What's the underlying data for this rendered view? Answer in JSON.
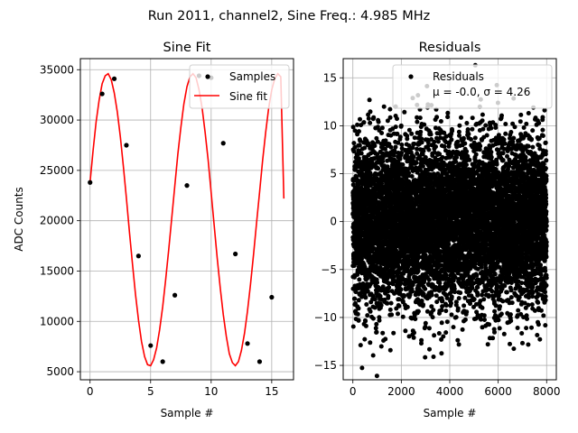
{
  "figure": {
    "suptitle": "Run 2011, channel2, Sine Freq.: 4.985 MHz"
  },
  "colors": {
    "samples": "#000000",
    "fit": "#ff0000",
    "grid": "#b0b0b0",
    "legend_border": "#d0d0d0"
  },
  "chart_data": [
    {
      "type": "scatter",
      "title": "Sine Fit",
      "xlabel": "Sample #",
      "ylabel": "ADC Counts",
      "xlim": [
        -0.8,
        16.8
      ],
      "ylim": [
        4200,
        36100
      ],
      "xticks": [
        0,
        5,
        10,
        15
      ],
      "xtick_labels": [
        "0",
        "5",
        "10",
        "15"
      ],
      "yticks": [
        5000,
        10000,
        15000,
        20000,
        25000,
        30000,
        35000
      ],
      "ytick_labels": [
        "5000",
        "10000",
        "15000",
        "20000",
        "25000",
        "30000",
        "35000"
      ],
      "grid": true,
      "legend": {
        "location": "upper right",
        "entries": [
          "Samples",
          "Sine fit"
        ]
      },
      "series": [
        {
          "name": "Samples",
          "kind": "scatter",
          "x": [
            0,
            1,
            2,
            3,
            4,
            5,
            6,
            7,
            8,
            9,
            10,
            11,
            12,
            13,
            14,
            15
          ],
          "y": [
            23800,
            32600,
            34100,
            27500,
            16500,
            7600,
            6000,
            12600,
            23500,
            34400,
            34200,
            27700,
            16700,
            7800,
            6000,
            12400
          ]
        },
        {
          "name": "Sine fit",
          "kind": "line",
          "x": [
            0,
            0.25,
            0.5,
            0.75,
            1,
            1.25,
            1.5,
            1.75,
            2,
            2.25,
            2.5,
            2.75,
            3,
            3.25,
            3.5,
            3.75,
            4,
            4.25,
            4.5,
            4.75,
            5,
            5.25,
            5.5,
            5.75,
            6,
            6.25,
            6.5,
            6.75,
            7,
            7.25,
            7.5,
            7.75,
            8,
            8.25,
            8.5,
            8.75,
            9,
            9.25,
            9.5,
            9.75,
            10,
            10.25,
            10.5,
            10.75,
            11,
            11.25,
            11.5,
            11.75,
            12,
            12.25,
            12.5,
            12.75,
            13,
            13.25,
            13.5,
            13.75,
            14,
            14.25,
            14.5,
            14.75,
            15,
            15.25,
            15.5,
            15.75,
            16
          ],
          "y": [
            23800,
            27000,
            29800,
            32000,
            33600,
            34400,
            34600,
            34000,
            32700,
            30800,
            28300,
            25400,
            22200,
            18900,
            15700,
            12700,
            10100,
            8000,
            6500,
            5700,
            5600,
            6200,
            7400,
            9200,
            11500,
            14200,
            17200,
            20300,
            23500,
            26600,
            29300,
            31600,
            33300,
            34300,
            34600,
            34200,
            33000,
            31200,
            28800,
            26000,
            22800,
            19500,
            16300,
            13300,
            10700,
            8500,
            6800,
            5900,
            5600,
            6000,
            7100,
            8800,
            11000,
            13700,
            16700,
            19800,
            22900,
            26000,
            28800,
            31200,
            33000,
            34100,
            34600,
            34300,
            22200
          ]
        }
      ]
    },
    {
      "type": "scatter",
      "title": "Residuals",
      "xlabel": "Sample #",
      "ylabel": "",
      "xlim": [
        -400,
        8400
      ],
      "ylim": [
        -16.5,
        17
      ],
      "xticks": [
        0,
        2000,
        4000,
        6000,
        8000
      ],
      "xtick_labels": [
        "0",
        "2000",
        "4000",
        "6000",
        "8000"
      ],
      "yticks": [
        -15,
        -10,
        -5,
        0,
        5,
        10,
        15
      ],
      "ytick_labels": [
        "−15",
        "−10",
        "−5",
        "0",
        "5",
        "10",
        "15"
      ],
      "grid": true,
      "legend": {
        "location": "upper right",
        "entries": [
          "Residuals",
          "μ = -0.0, σ = 4.26"
        ]
      },
      "series": [
        {
          "name": "Residuals",
          "kind": "scatter",
          "n_points": 8000,
          "mean": 0.0,
          "std": 4.26
        }
      ]
    }
  ]
}
